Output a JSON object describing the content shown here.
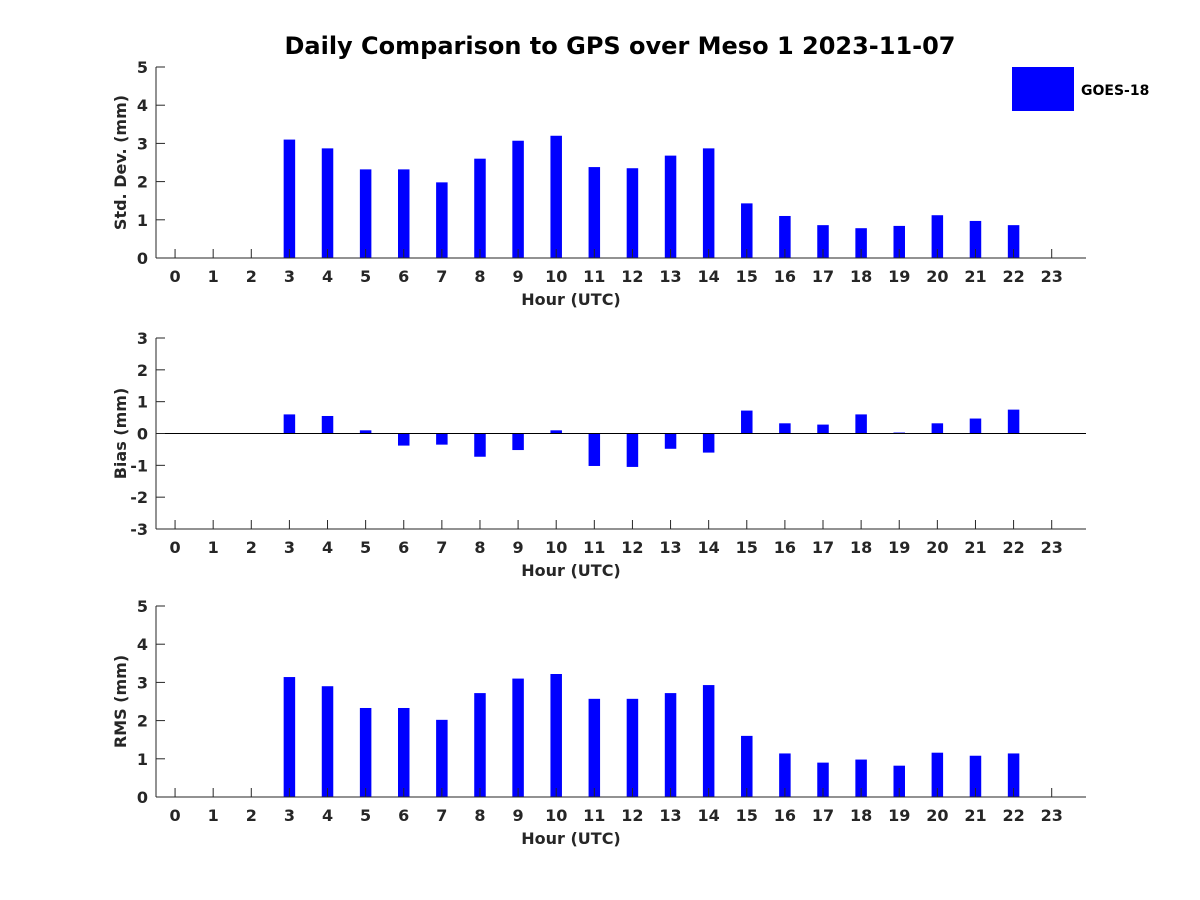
{
  "figure": {
    "title": "Daily Comparison to GPS over Meso 1 2023-11-07"
  },
  "legend": {
    "label": "GOES-18",
    "placement": "top-right",
    "color": "#0000ff"
  },
  "chart_data": [
    {
      "type": "bar",
      "xlabel": "Hour (UTC)",
      "ylabel": "Std. Dev. (mm)",
      "ylim": [
        0,
        5
      ],
      "yticks": [
        0,
        1,
        2,
        3,
        4,
        5
      ],
      "xlim": [
        -0.5,
        23.9
      ],
      "categories": [
        0,
        1,
        2,
        3,
        4,
        5,
        6,
        7,
        8,
        9,
        10,
        11,
        12,
        13,
        14,
        15,
        16,
        17,
        18,
        19,
        20,
        21,
        22,
        23
      ],
      "series": [
        {
          "name": "GOES-18",
          "color": "#0000ff",
          "values": [
            null,
            null,
            null,
            3.1,
            2.87,
            2.32,
            2.32,
            1.98,
            2.6,
            3.07,
            3.2,
            2.38,
            2.35,
            2.68,
            2.87,
            1.43,
            1.1,
            0.86,
            0.78,
            0.84,
            1.12,
            0.97,
            0.86,
            null
          ]
        }
      ],
      "grid": false,
      "legend": true
    },
    {
      "type": "bar",
      "xlabel": "Hour (UTC)",
      "ylabel": "Bias (mm)",
      "ylim": [
        -3,
        3
      ],
      "yticks": [
        -3,
        -2,
        -1,
        0,
        1,
        2,
        3
      ],
      "xlim": [
        -0.5,
        23.9
      ],
      "categories": [
        0,
        1,
        2,
        3,
        4,
        5,
        6,
        7,
        8,
        9,
        10,
        11,
        12,
        13,
        14,
        15,
        16,
        17,
        18,
        19,
        20,
        21,
        22,
        23
      ],
      "series": [
        {
          "name": "GOES-18",
          "color": "#0000ff",
          "values": [
            null,
            null,
            null,
            0.6,
            0.55,
            0.1,
            -0.38,
            -0.35,
            -0.73,
            -0.52,
            0.1,
            -1.02,
            -1.05,
            -0.48,
            -0.6,
            0.72,
            0.32,
            0.28,
            0.6,
            0.03,
            0.32,
            0.47,
            0.75,
            null
          ]
        }
      ],
      "grid": false,
      "legend": false
    },
    {
      "type": "bar",
      "xlabel": "Hour (UTC)",
      "ylabel": "RMS (mm)",
      "ylim": [
        0,
        5
      ],
      "yticks": [
        0,
        1,
        2,
        3,
        4,
        5
      ],
      "xlim": [
        -0.5,
        23.9
      ],
      "categories": [
        0,
        1,
        2,
        3,
        4,
        5,
        6,
        7,
        8,
        9,
        10,
        11,
        12,
        13,
        14,
        15,
        16,
        17,
        18,
        19,
        20,
        21,
        22,
        23
      ],
      "series": [
        {
          "name": "GOES-18",
          "color": "#0000ff",
          "values": [
            null,
            null,
            null,
            3.14,
            2.9,
            2.33,
            2.33,
            2.02,
            2.72,
            3.1,
            3.22,
            2.57,
            2.57,
            2.72,
            2.93,
            1.6,
            1.14,
            0.9,
            0.98,
            0.82,
            1.16,
            1.08,
            1.14,
            null
          ]
        }
      ],
      "grid": false,
      "legend": false
    }
  ]
}
